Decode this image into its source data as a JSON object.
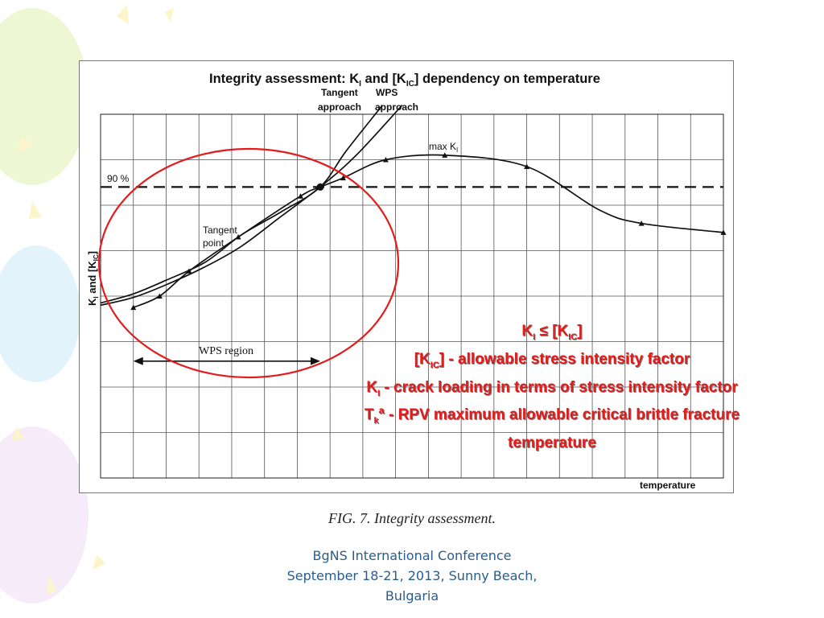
{
  "slide": {
    "caption": "FIG. 7. Integrity assessment.",
    "footer_line1": "BgNS International Conference",
    "footer_line2": "September 18-21, 2013, Sunny Beach,",
    "footer_line3": "Bulgaria"
  },
  "legend": {
    "line1_a": "K",
    "line1_sub": "I",
    "line1_b": " ≤ [K",
    "line1_sub2": "IC",
    "line1_c": "]",
    "line2_a": "[K",
    "line2_sub": "IC",
    "line2_b": "] - allowable stress intensity factor",
    "line3_a": "K",
    "line3_sub": "I",
    "line3_b": " -  crack loading in terms of stress intensity factor",
    "line4_a": "T",
    "line4_sub": "k",
    "line4_b": "ª - RPV maximum allowable critical brittle fracture",
    "line5": "temperature"
  },
  "colors": {
    "legend_red": "#e31b1b",
    "circle_red": "#e21c1c",
    "footer_blue": "#2a5d8c",
    "curve": "#111111"
  },
  "chart_data": {
    "type": "line",
    "title_parts": [
      "Integrity assessment: K",
      "I",
      " and  [K",
      "IC",
      "] dependency on temperature"
    ],
    "xlabel": "temperature",
    "ylabel_parts": [
      "K",
      "I",
      " and [K",
      "IC",
      "]"
    ],
    "xlim": [
      0,
      19
    ],
    "ylim": [
      0,
      8
    ],
    "grid": true,
    "annotations": {
      "tangent_label": "Tangent",
      "approach_label": "approach",
      "wps_label": "WPS",
      "wps_approach_label": "approach",
      "max_label": "max K",
      "max_sub": "I",
      "percent_label": "90 %",
      "tangent_point_line1": "Tangent",
      "tangent_point_line2": "point",
      "wps_region_label": "WPS region"
    },
    "reference_line": {
      "name": "90 %",
      "y": 6.4
    },
    "wps_region": [
      1.0,
      6.7
    ],
    "series": [
      {
        "key": "ki",
        "x": [
          1.0,
          1.8,
          2.7,
          4.2,
          6.1,
          6.7,
          7.4,
          8.7,
          10.5,
          13.0,
          15.2,
          16.5,
          19.0
        ],
        "y": [
          3.75,
          4.0,
          4.55,
          5.3,
          6.2,
          6.4,
          6.6,
          7.0,
          7.1,
          6.85,
          5.9,
          5.6,
          5.4
        ],
        "markers": [
          1.0,
          1.8,
          2.7,
          4.2,
          6.1,
          7.4,
          8.7,
          10.5,
          13.0,
          16.5,
          19.0
        ]
      },
      {
        "key": "tangent",
        "x": [
          0,
          1.0,
          2.0,
          3.2,
          4.3,
          5.5,
          6.7,
          7.5,
          8.6
        ],
        "y": [
          3.85,
          4.05,
          4.35,
          4.75,
          5.35,
          5.85,
          6.4,
          7.2,
          8.2
        ]
      },
      {
        "key": "wps",
        "x": [
          0,
          1.0,
          2.0,
          3.2,
          4.3,
          5.5,
          6.7,
          7.8,
          9.2
        ],
        "y": [
          3.8,
          3.97,
          4.25,
          4.65,
          5.1,
          5.75,
          6.4,
          7.1,
          8.2
        ]
      }
    ]
  }
}
